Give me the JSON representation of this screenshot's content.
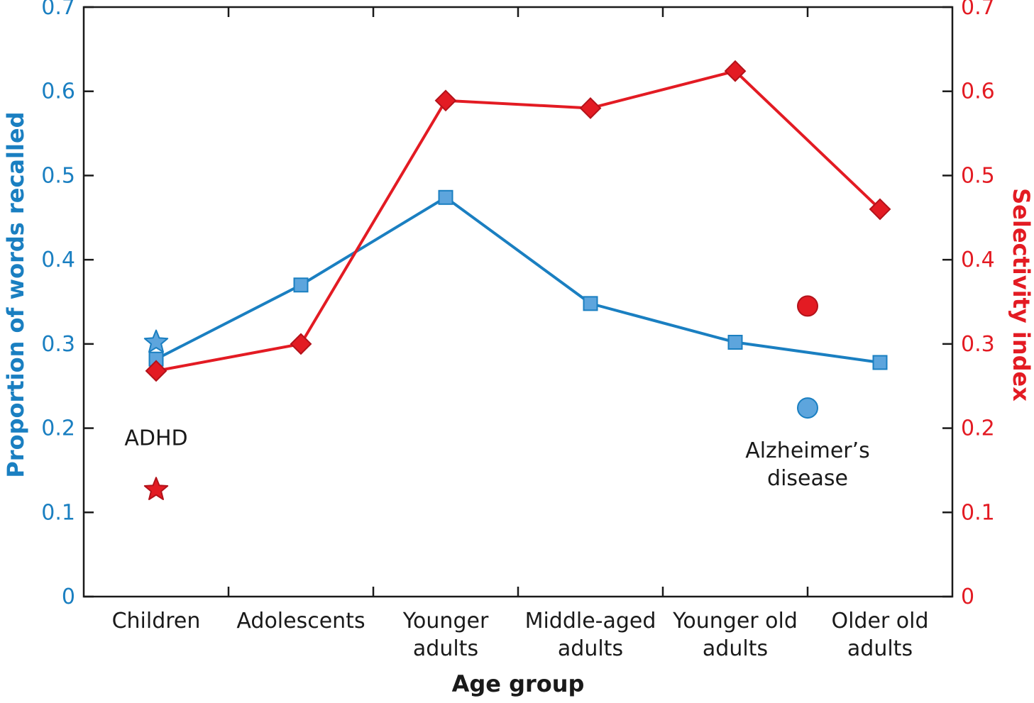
{
  "chart_data": {
    "type": "line",
    "categories": [
      [
        "Children"
      ],
      [
        "Adolescents"
      ],
      [
        "Younger",
        "adults"
      ],
      [
        "Middle-aged",
        "adults"
      ],
      [
        "Younger old",
        "adults"
      ],
      [
        "Older old",
        "adults"
      ]
    ],
    "xlabel": "Age group",
    "ylabel_left": "Proportion of words recalled",
    "ylabel_right": "Selectivity index",
    "ylim_left": [
      0,
      0.7
    ],
    "ylim_right": [
      0,
      0.7
    ],
    "yticks": [
      "0",
      "0.1",
      "0.2",
      "0.3",
      "0.4",
      "0.5",
      "0.6",
      "0.7"
    ],
    "grid": false,
    "colors": {
      "blue": "#1a7fc1",
      "red": "#e31b23",
      "blue_fill": "#5da5dd",
      "red_fill": "#e31b23"
    },
    "series": [
      {
        "axis": "left",
        "marker": "square",
        "values": [
          0.282,
          0.37,
          0.474,
          0.348,
          0.302,
          0.278
        ]
      },
      {
        "axis": "right",
        "marker": "diamond",
        "values": [
          0.268,
          0.3,
          0.589,
          0.58,
          0.624,
          0.46
        ]
      }
    ],
    "special_points": [
      {
        "label": "ADHD",
        "marker": "star",
        "axis": "left",
        "category_index": 0,
        "value": 0.302
      },
      {
        "label": "ADHD",
        "marker": "star",
        "axis": "right",
        "category_index": 0,
        "value": 0.127
      },
      {
        "label": "Alzheimer’s disease",
        "marker": "circle",
        "axis": "left",
        "category_index": 4.5,
        "value": 0.224
      },
      {
        "label": "Alzheimer’s disease",
        "marker": "circle",
        "axis": "right",
        "category_index": 4.5,
        "value": 0.345
      }
    ],
    "annotations": [
      {
        "lines": [
          "ADHD"
        ],
        "category_index": 0,
        "value": 0.18
      },
      {
        "lines": [
          "Alzheimer’s",
          "disease"
        ],
        "category_index": 4.5,
        "value": 0.165
      }
    ]
  }
}
